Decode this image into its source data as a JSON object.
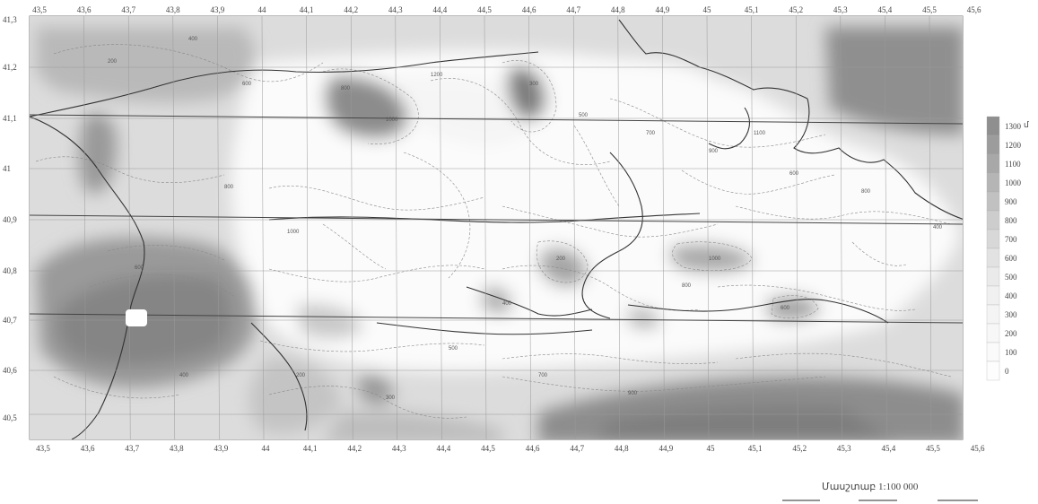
{
  "map": {
    "top_longitudes": [
      "43,5",
      "43,6",
      "43,7",
      "43,8",
      "43,9",
      "44",
      "44,1",
      "44,2",
      "44,3",
      "44,4",
      "44,5",
      "44,6",
      "44,7",
      "44,8",
      "44,9",
      "45",
      "45,1",
      "45,2",
      "45,3",
      "45,4",
      "45,5",
      "45,6"
    ],
    "bottom_longitudes": [
      "43,5",
      "43,6",
      "43,7",
      "43,8",
      "43,9",
      "44",
      "44,1",
      "44,2",
      "44,3",
      "44,4",
      "44,5",
      "44,6",
      "44,7",
      "44,8",
      "44,9",
      "45",
      "45,1",
      "45,2",
      "45,3",
      "45,4",
      "45,5",
      "45,6"
    ],
    "latitudes": [
      "41,3",
      "41,2",
      "41,1",
      "41",
      "40,9",
      "40,8",
      "40,7",
      "40,6",
      "40,5"
    ],
    "contour_labels": [
      "200",
      "400",
      "600",
      "800",
      "1000",
      "1200",
      "300",
      "500",
      "700",
      "900",
      "1100",
      "600",
      "800",
      "400",
      "200",
      "1000",
      "800",
      "600",
      "400",
      "500",
      "700",
      "900",
      "300",
      "200",
      "400",
      "600",
      "800",
      "1000"
    ]
  },
  "legend": {
    "unit": "մ",
    "levels": [
      "1300",
      "1200",
      "1100",
      "1000",
      "900",
      "800",
      "700",
      "600",
      "500",
      "400",
      "300",
      "200",
      "100",
      "0"
    ],
    "colors": [
      "#8f8f8f",
      "#9c9c9c",
      "#a8a8a8",
      "#b5b5b5",
      "#c1c1c1",
      "#cdcdcd",
      "#d8d8d8",
      "#e2e2e2",
      "#eaeaea",
      "#f0f0f0",
      "#f4f4f4",
      "#f7f7f7",
      "#fafafa",
      "#fdfdfd"
    ]
  },
  "scale": {
    "text": "Մասշտաբ 1:100 000"
  }
}
